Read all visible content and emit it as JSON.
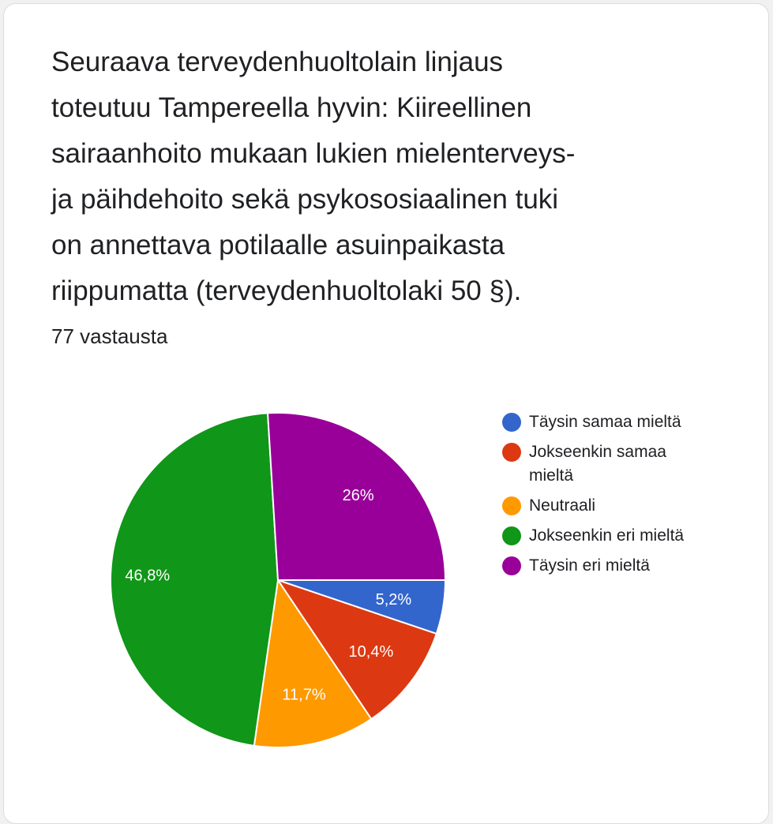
{
  "question": {
    "lines": [
      "Seuraava terveydenhuoltolain linjaus",
      "toteutuu Tampereella hyvin: Kiireellinen",
      "sairaanhoito mukaan lukien mielenterveys-",
      "ja päihdehoito sekä psykososiaalinen tuki",
      "on annettava potilaalle asuinpaikasta",
      "riippumatta (terveydenhuoltolaki 50 §)."
    ]
  },
  "response_count": "77 vastausta",
  "chart_data": {
    "type": "pie",
    "categories": [
      "Täysin samaa mieltä",
      "Jokseenkin samaa mieltä",
      "Neutraali",
      "Jokseenkin eri mieltä",
      "Täysin eri mieltä"
    ],
    "values": [
      5.2,
      10.4,
      11.7,
      46.8,
      26
    ],
    "labels": [
      "5,2%",
      "10,4%",
      "11,7%",
      "46,8%",
      "26%"
    ],
    "colors": [
      "#3366cc",
      "#dc3912",
      "#ff9900",
      "#109618",
      "#990099"
    ],
    "legend_position": "right"
  }
}
